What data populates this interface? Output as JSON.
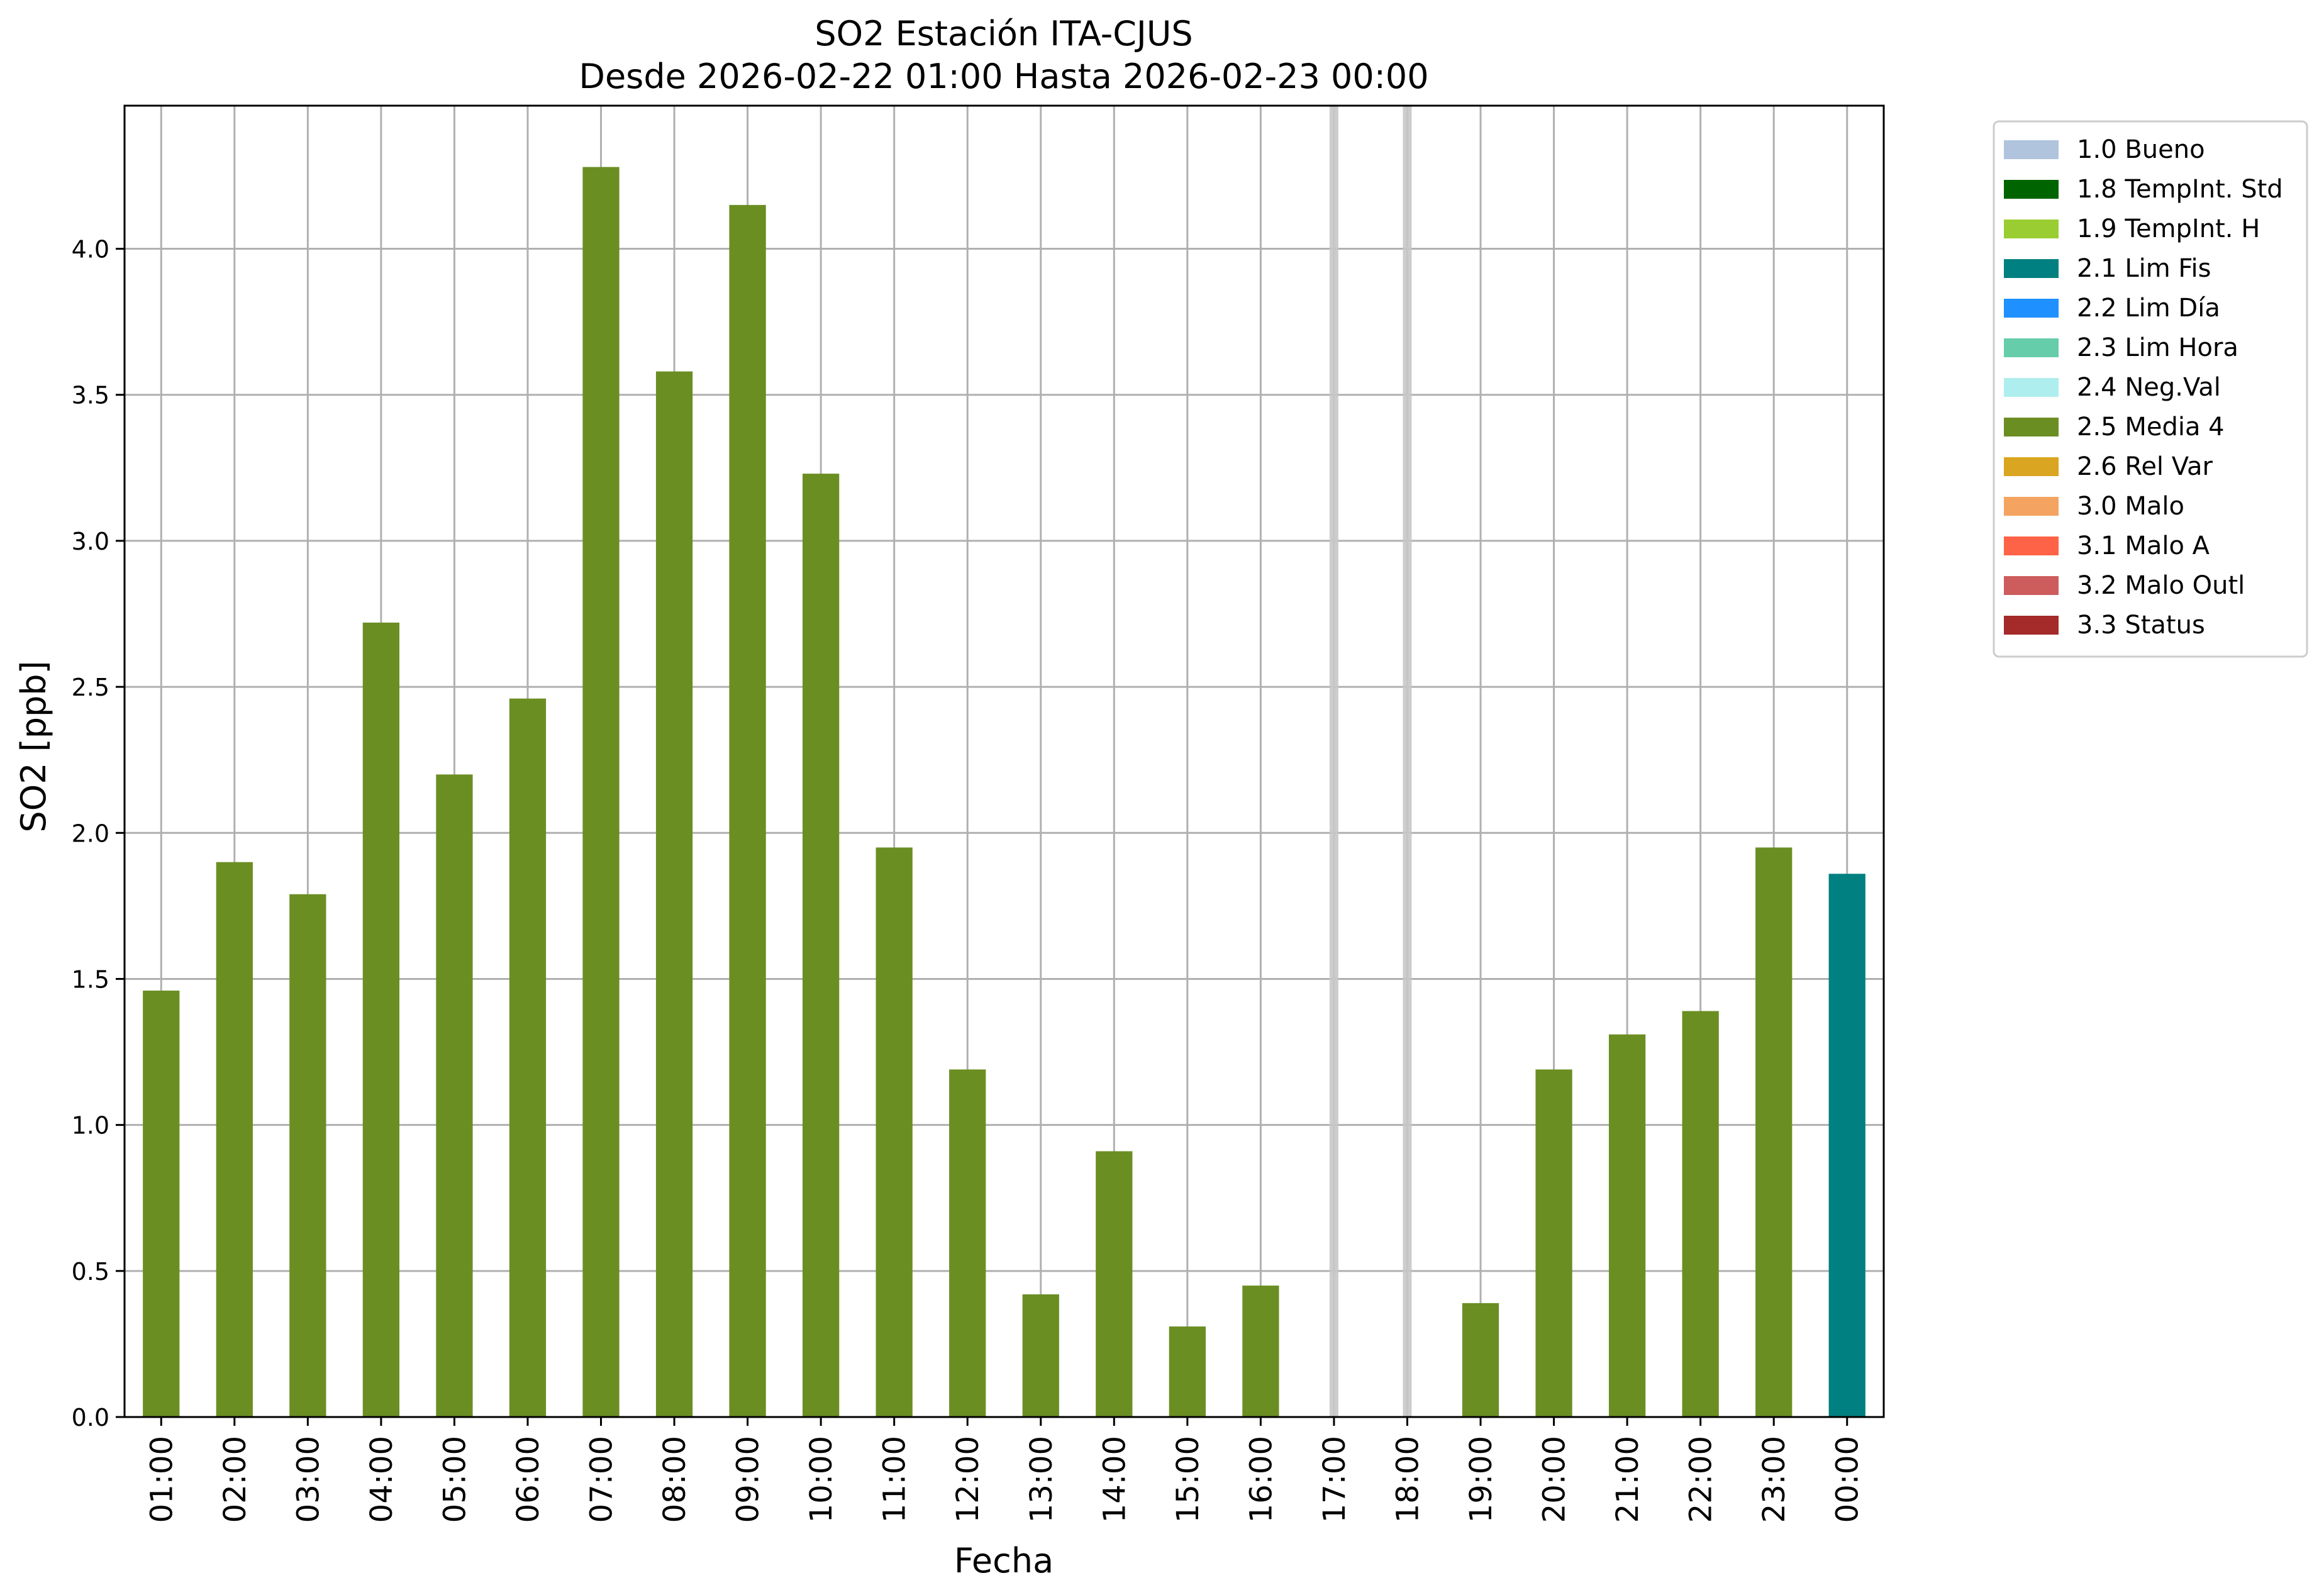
{
  "chart_data": {
    "type": "bar",
    "title": "SO2 Estación ITA-CJUS",
    "subtitle": "Desde 2026-02-22 01:00 Hasta 2026-02-23 00:00",
    "xlabel": "Fecha",
    "ylabel": "SO2 [ppb]",
    "ylim": [
      0,
      4.49
    ],
    "yticks": [
      0.0,
      0.5,
      1.0,
      1.5,
      2.0,
      2.5,
      3.0,
      3.5,
      4.0
    ],
    "ytick_labels": [
      "0.0",
      "0.5",
      "1.0",
      "1.5",
      "2.0",
      "2.5",
      "3.0",
      "3.5",
      "4.0"
    ],
    "grid": true,
    "legend_position": "outside-top-right",
    "categories": [
      "01:00",
      "02:00",
      "03:00",
      "04:00",
      "05:00",
      "06:00",
      "07:00",
      "08:00",
      "09:00",
      "10:00",
      "11:00",
      "12:00",
      "13:00",
      "14:00",
      "15:00",
      "16:00",
      "17:00",
      "18:00",
      "19:00",
      "20:00",
      "21:00",
      "22:00",
      "23:00",
      "00:00"
    ],
    "values": [
      1.46,
      1.9,
      1.79,
      2.72,
      2.2,
      2.46,
      4.28,
      3.58,
      4.15,
      3.23,
      1.95,
      1.19,
      0.42,
      0.91,
      0.31,
      0.45,
      null,
      null,
      0.39,
      1.19,
      1.31,
      1.39,
      1.95,
      1.86
    ],
    "flags": [
      "2.5 Media 4",
      "2.5 Media 4",
      "2.5 Media 4",
      "2.5 Media 4",
      "2.5 Media 4",
      "2.5 Media 4",
      "2.5 Media 4",
      "2.5 Media 4",
      "2.5 Media 4",
      "2.5 Media 4",
      "2.5 Media 4",
      "2.5 Media 4",
      "2.5 Media 4",
      "2.5 Media 4",
      "2.5 Media 4",
      "2.5 Media 4",
      "missing",
      "missing",
      "2.5 Media 4",
      "2.5 Media 4",
      "2.5 Media 4",
      "2.5 Media 4",
      "2.5 Media 4",
      "2.1 Lim Fis"
    ],
    "legend": [
      {
        "label": "1.0 Bueno",
        "color": "#b0c4de"
      },
      {
        "label": "1.8 TempInt. Std",
        "color": "#006400"
      },
      {
        "label": "1.9 TempInt. H",
        "color": "#9acd32"
      },
      {
        "label": "2.1 Lim Fis",
        "color": "#008080"
      },
      {
        "label": "2.2 Lim Día",
        "color": "#1e90ff"
      },
      {
        "label": "2.3 Lim Hora",
        "color": "#66cdaa"
      },
      {
        "label": "2.4 Neg.Val",
        "color": "#afeeee"
      },
      {
        "label": "2.5 Media 4",
        "color": "#6b8e23"
      },
      {
        "label": "2.6 Rel Var",
        "color": "#daa520"
      },
      {
        "label": "3.0 Malo",
        "color": "#f4a460"
      },
      {
        "label": "3.1 Malo A",
        "color": "#ff6347"
      },
      {
        "label": "3.2 Malo Outl",
        "color": "#cd5c5c"
      },
      {
        "label": "3.3 Status",
        "color": "#a52a2a"
      }
    ],
    "missing_marker_color": "#c8c8c8"
  }
}
